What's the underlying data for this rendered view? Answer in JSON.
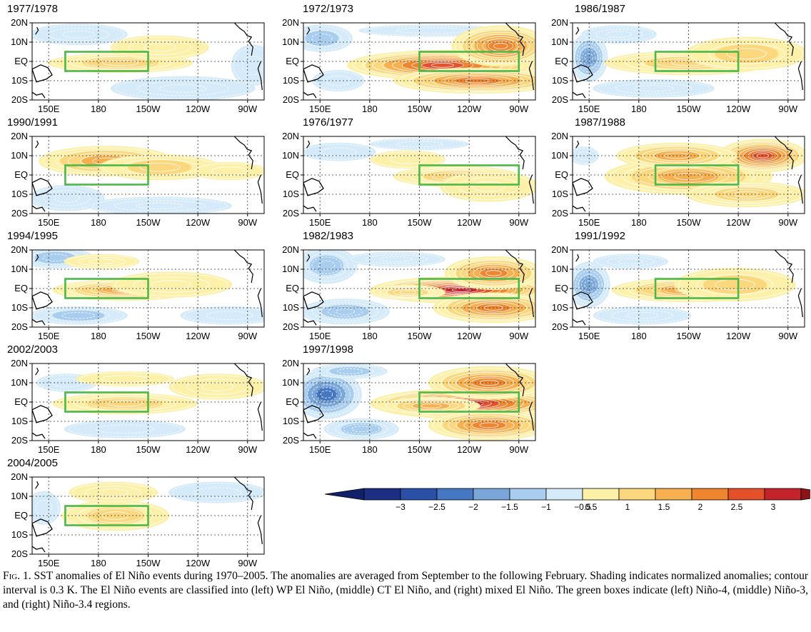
{
  "figure": {
    "panels": [
      {
        "id": "p1977",
        "title": "1977/1978",
        "category": "WP El Niño",
        "box_region": "Niño-4",
        "intensity": 1.1,
        "warm": [
          [
            0.38,
            0.52,
            0.3,
            0.11,
            1.2
          ],
          [
            0.55,
            0.32,
            0.2,
            0.14,
            0.8
          ]
        ],
        "cool": [
          [
            0.2,
            0.15,
            0.2,
            0.12,
            -0.8
          ],
          [
            0.65,
            0.85,
            0.3,
            0.14,
            -0.8
          ],
          [
            0.95,
            0.55,
            0.08,
            0.25,
            -0.7
          ]
        ]
      },
      {
        "id": "p1972",
        "title": "1972/1973",
        "category": "CT El Niño",
        "box_region": "Niño-3",
        "intensity": 2.6,
        "warm": [
          [
            0.6,
            0.55,
            0.4,
            0.18,
            2.6
          ],
          [
            0.85,
            0.3,
            0.2,
            0.25,
            2.4
          ],
          [
            0.75,
            0.75,
            0.35,
            0.15,
            2.0
          ]
        ],
        "cool": [
          [
            0.08,
            0.2,
            0.12,
            0.16,
            -1.0
          ],
          [
            0.15,
            0.75,
            0.1,
            0.12,
            -0.7
          ],
          [
            0.55,
            0.1,
            0.3,
            0.06,
            -0.6
          ]
        ]
      },
      {
        "id": "p1986",
        "title": "1986/1987",
        "category": "Mixed El Niño",
        "box_region": "Niño-3.4",
        "intensity": 1.3,
        "warm": [
          [
            0.5,
            0.52,
            0.35,
            0.14,
            1.4
          ],
          [
            0.75,
            0.4,
            0.25,
            0.2,
            1.0
          ]
        ],
        "cool": [
          [
            0.07,
            0.45,
            0.07,
            0.3,
            -1.8
          ],
          [
            0.35,
            0.85,
            0.25,
            0.1,
            -0.8
          ],
          [
            0.2,
            0.15,
            0.15,
            0.1,
            -0.8
          ]
        ]
      },
      {
        "id": "p1990",
        "title": "1990/1991",
        "category": "WP El Niño",
        "box_region": "Niño-4",
        "intensity": 1.4,
        "warm": [
          [
            0.32,
            0.32,
            0.28,
            0.18,
            1.6
          ],
          [
            0.55,
            0.4,
            0.25,
            0.15,
            1.0
          ],
          [
            0.85,
            0.45,
            0.15,
            0.1,
            0.6
          ]
        ],
        "cool": [
          [
            0.15,
            0.8,
            0.15,
            0.15,
            -0.8
          ],
          [
            0.55,
            0.9,
            0.3,
            0.1,
            -0.8
          ]
        ]
      },
      {
        "id": "p1976",
        "title": "1976/1977",
        "category": "CT El Niño",
        "box_region": "Niño-3",
        "intensity": 1.3,
        "warm": [
          [
            0.66,
            0.52,
            0.26,
            0.12,
            1.4
          ],
          [
            0.45,
            0.3,
            0.15,
            0.1,
            0.6
          ],
          [
            0.8,
            0.65,
            0.2,
            0.18,
            0.8
          ]
        ],
        "cool": [
          [
            0.15,
            0.2,
            0.15,
            0.1,
            -0.6
          ],
          [
            0.5,
            0.1,
            0.2,
            0.06,
            -0.6
          ]
        ]
      },
      {
        "id": "p1987",
        "title": "1987/1988",
        "category": "Mixed El Niño",
        "box_region": "Niño-3.4",
        "intensity": 2.0,
        "warm": [
          [
            0.5,
            0.52,
            0.35,
            0.22,
            1.8
          ],
          [
            0.82,
            0.25,
            0.18,
            0.2,
            2.8
          ],
          [
            0.45,
            0.25,
            0.25,
            0.15,
            1.6
          ],
          [
            0.75,
            0.75,
            0.25,
            0.15,
            1.4
          ]
        ],
        "cool": [
          [
            0.05,
            0.25,
            0.05,
            0.1,
            -0.6
          ]
        ]
      },
      {
        "id": "p1994",
        "title": "1994/1995",
        "category": "WP El Niño",
        "box_region": "Niño-4",
        "intensity": 1.5,
        "warm": [
          [
            0.4,
            0.52,
            0.3,
            0.12,
            1.8
          ],
          [
            0.6,
            0.45,
            0.25,
            0.15,
            0.8
          ],
          [
            0.3,
            0.15,
            0.15,
            0.08,
            0.8
          ]
        ],
        "cool": [
          [
            0.1,
            0.1,
            0.15,
            0.12,
            -1.0
          ],
          [
            0.2,
            0.85,
            0.2,
            0.1,
            -1.0
          ],
          [
            0.85,
            0.85,
            0.2,
            0.1,
            -0.6
          ]
        ]
      },
      {
        "id": "p1982",
        "title": "1982/1983",
        "category": "CT El Niño",
        "box_region": "Niño-3",
        "intensity": 2.9,
        "warm": [
          [
            0.68,
            0.52,
            0.38,
            0.16,
            3.2
          ],
          [
            0.82,
            0.3,
            0.2,
            0.2,
            2.2
          ],
          [
            0.82,
            0.75,
            0.25,
            0.18,
            2.2
          ],
          [
            0.45,
            0.55,
            0.15,
            0.08,
            1.4
          ]
        ],
        "cool": [
          [
            0.1,
            0.2,
            0.12,
            0.22,
            -1.3
          ],
          [
            0.18,
            0.8,
            0.18,
            0.15,
            -1.4
          ],
          [
            0.4,
            0.12,
            0.2,
            0.08,
            -0.8
          ]
        ]
      },
      {
        "id": "p1991",
        "title": "1991/1992",
        "category": "Mixed El Niño",
        "box_region": "Niño-3.4",
        "intensity": 1.6,
        "warm": [
          [
            0.5,
            0.52,
            0.32,
            0.14,
            1.8
          ],
          [
            0.7,
            0.45,
            0.25,
            0.2,
            1.0
          ]
        ],
        "cool": [
          [
            0.07,
            0.45,
            0.08,
            0.28,
            -1.8
          ],
          [
            0.3,
            0.85,
            0.2,
            0.1,
            -0.8
          ],
          [
            0.25,
            0.15,
            0.15,
            0.08,
            -0.8
          ]
        ]
      },
      {
        "id": "p2002",
        "title": "2002/2003",
        "category": "WP El Niño",
        "box_region": "Niño-4",
        "intensity": 1.1,
        "warm": [
          [
            0.4,
            0.52,
            0.3,
            0.12,
            1.2
          ],
          [
            0.8,
            0.3,
            0.2,
            0.15,
            0.8
          ],
          [
            0.4,
            0.2,
            0.2,
            0.08,
            0.6
          ]
        ],
        "cool": [
          [
            0.15,
            0.25,
            0.12,
            0.1,
            -0.7
          ],
          [
            0.4,
            0.85,
            0.25,
            0.1,
            -0.7
          ]
        ]
      },
      {
        "id": "p1997",
        "title": "1997/1998",
        "category": "CT El Niño",
        "box_region": "Niño-3",
        "intensity": 3.0,
        "warm": [
          [
            0.7,
            0.52,
            0.4,
            0.18,
            3.4
          ],
          [
            0.8,
            0.25,
            0.25,
            0.2,
            2.0
          ],
          [
            0.8,
            0.8,
            0.25,
            0.18,
            2.0
          ],
          [
            0.55,
            0.55,
            0.2,
            0.1,
            1.6
          ]
        ],
        "cool": [
          [
            0.1,
            0.4,
            0.14,
            0.3,
            -2.0
          ],
          [
            0.25,
            0.85,
            0.15,
            0.12,
            -1.2
          ],
          [
            0.2,
            0.1,
            0.15,
            0.08,
            -1.0
          ]
        ]
      },
      {
        "id": "p2004",
        "title": "2004/2005",
        "category": "WP El Niño",
        "box_region": "Niño-4",
        "intensity": 1.0,
        "warm": [
          [
            0.36,
            0.5,
            0.22,
            0.18,
            1.2
          ],
          [
            0.35,
            0.2,
            0.18,
            0.12,
            0.8
          ]
        ],
        "cool": [
          [
            0.05,
            0.4,
            0.06,
            0.2,
            -0.7
          ],
          [
            0.8,
            0.2,
            0.2,
            0.12,
            -0.6
          ]
        ]
      }
    ],
    "lat_labels": [
      "20N",
      "10N",
      "EQ",
      "10S",
      "20S"
    ],
    "lon_labels": [
      "150E",
      "180",
      "150W",
      "120W",
      "90W"
    ],
    "lat_range": [
      -20,
      20
    ],
    "lon_range": [
      140,
      280
    ],
    "lon_ticks": [
      150,
      180,
      210,
      240,
      270
    ],
    "lat_ticks": [
      20,
      10,
      0,
      -10,
      -20
    ],
    "boxes": {
      "Niño-4": {
        "lon": [
          160,
          210
        ],
        "lat": [
          -5,
          5
        ]
      },
      "Niño-3": {
        "lon": [
          210,
          270
        ],
        "lat": [
          -5,
          5
        ]
      },
      "Niño-3.4": {
        "lon": [
          190,
          240
        ],
        "lat": [
          -5,
          5
        ]
      }
    },
    "box_color": "#4cb848",
    "contour_color": "#ffffff",
    "contour_interval": "0.3 K"
  },
  "colorbar": {
    "labels": [
      "−3",
      "−2.5",
      "−2",
      "−1.5",
      "−1",
      "−0.5",
      "0.5",
      "1",
      "1.5",
      "2",
      "2.5",
      "3"
    ],
    "neg_colors": [
      "#1b2e82",
      "#2a4fa6",
      "#4677c2",
      "#7aa7da",
      "#a8cdee",
      "#d5ebf9"
    ],
    "pos_colors": [
      "#fdf0a8",
      "#fbd77e",
      "#f7b050",
      "#f08530",
      "#e3502a",
      "#c4232b"
    ],
    "tip_neg": "#12206a",
    "tip_pos": "#8c1418"
  },
  "caption": {
    "prefix": "F",
    "prefix_sc": "ig",
    "number": ". 1.",
    "text": " SST anomalies of El Niño events during 1970–2005. The anomalies are averaged from September to the following February. Shading indicates normalized anomalies; contour interval is 0.3 K. The El Niño events are classified into (left) WP El Niño, (middle) CT El Niño, and (right) mixed El Niño. The green boxes indicate (left) Niño-4, (middle) Niño-3, and (right) Niño-3.4 regions."
  }
}
